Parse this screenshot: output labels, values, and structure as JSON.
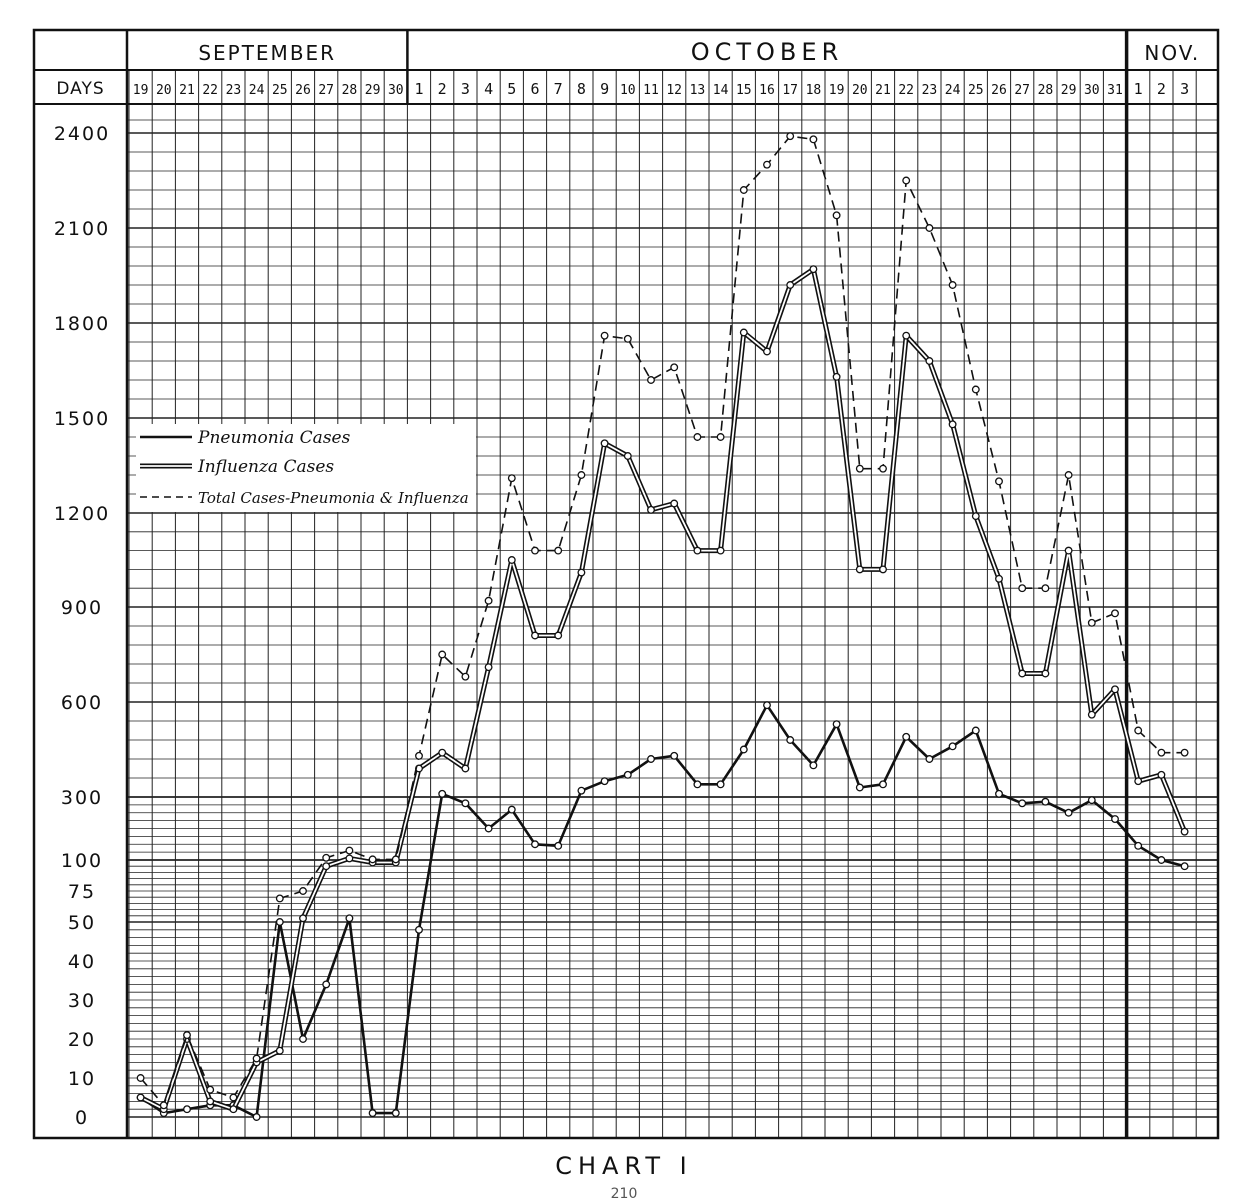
{
  "chart_data": {
    "type": "line",
    "month_headers": [
      "SEPTEMBER",
      "OCTOBER",
      "NOV."
    ],
    "days_label": "DAYS",
    "x": [
      "19",
      "20",
      "21",
      "22",
      "23",
      "24",
      "25",
      "26",
      "27",
      "28",
      "29",
      "30",
      "1",
      "2",
      "3",
      "4",
      "5",
      "6",
      "7",
      "8",
      "9",
      "10",
      "11",
      "12",
      "13",
      "14",
      "15",
      "16",
      "17",
      "18",
      "19",
      "20",
      "21",
      "22",
      "23",
      "24",
      "25",
      "26",
      "27",
      "28",
      "29",
      "30",
      "31",
      "1",
      "2",
      "3"
    ],
    "y_ticks": [
      "0",
      "10",
      "20",
      "30",
      "40",
      "50",
      "75",
      "100",
      "300",
      "600",
      "900",
      "1200",
      "1500",
      "1800",
      "2100",
      "2400"
    ],
    "y_scale": "piecewise: 0–50 in steps of 10, 50–100 in steps of 25, then 100–2400 in steps of 300 (100→300 compressed)",
    "series": [
      {
        "name": "Pneumonia Cases",
        "style": "solid",
        "values": [
          5,
          1,
          2,
          3,
          3,
          0,
          50,
          20,
          34,
          53,
          1,
          1,
          48,
          310,
          280,
          200,
          260,
          150,
          145,
          320,
          350,
          370,
          420,
          430,
          340,
          340,
          450,
          590,
          480,
          400,
          530,
          330,
          340,
          490,
          420,
          460,
          510,
          310,
          280,
          285,
          250,
          290,
          230,
          145,
          100,
          95
        ]
      },
      {
        "name": "Influenza Cases",
        "style": "double",
        "values": [
          5,
          2,
          20,
          4,
          2,
          14,
          17,
          53,
          95,
          105,
          98,
          98,
          390,
          440,
          390,
          710,
          1050,
          810,
          810,
          1010,
          1420,
          1380,
          1210,
          1230,
          1080,
          1080,
          1770,
          1710,
          1920,
          1970,
          1630,
          1020,
          1020,
          1760,
          1680,
          1480,
          1190,
          990,
          690,
          690,
          1080,
          560,
          640,
          350,
          370,
          190
        ]
      },
      {
        "name": "Total Cases-Pneumonia & Influenza",
        "style": "dashed",
        "values": [
          10,
          3,
          21,
          7,
          5,
          15,
          69,
          75,
          107,
          130,
          102,
          102,
          430,
          750,
          680,
          920,
          1310,
          1080,
          1080,
          1320,
          1760,
          1750,
          1620,
          1660,
          1440,
          1440,
          2220,
          2300,
          2390,
          2380,
          2140,
          1340,
          1340,
          2250,
          2100,
          1920,
          1590,
          1300,
          960,
          960,
          1320,
          850,
          880,
          510,
          440,
          440
        ]
      }
    ],
    "legend": [
      "Pneumonia Cases",
      "Influenza Cases",
      "Total Cases-Pneumonia & Influenza"
    ],
    "legend_position": "left-middle",
    "grid": true
  },
  "caption": "CHART I",
  "page_number": "210"
}
